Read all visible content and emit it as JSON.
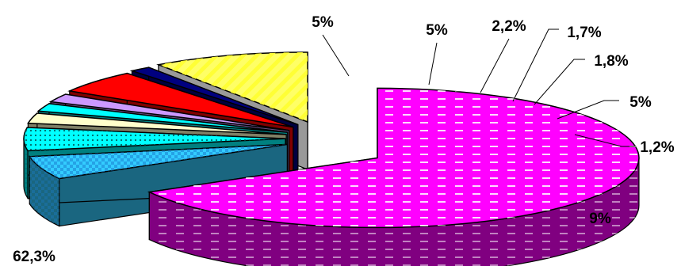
{
  "chart_data": {
    "type": "pie",
    "style": "3d-exploded",
    "slices": [
      {
        "label": "62,3%",
        "value": 62.3,
        "color": "#ff00ff",
        "side_color": "#800080",
        "pattern": "dashes"
      },
      {
        "label": "5%",
        "value": 5,
        "color": "#33ccff",
        "side_color": "#1a6680",
        "pattern": "checker"
      },
      {
        "label": "5%",
        "value": 5,
        "color": "#00ffff",
        "side_color": "#008080",
        "pattern": "dots"
      },
      {
        "label": "2,2%",
        "value": 2.2,
        "color": "#ffffcc",
        "side_color": "#808066",
        "pattern": "none"
      },
      {
        "label": "1,7%",
        "value": 1.7,
        "color": "#00ffff",
        "side_color": "#008080",
        "pattern": "none"
      },
      {
        "label": "1,8%",
        "value": 1.8,
        "color": "#cc99ff",
        "side_color": "#664c80",
        "pattern": "none"
      },
      {
        "label": "5%",
        "value": 5,
        "color": "#ff0000",
        "side_color": "#800000",
        "pattern": "none"
      },
      {
        "label": "1,2%",
        "value": 1.2,
        "color": "#000080",
        "side_color": "#000040",
        "pattern": "none"
      },
      {
        "label": "9%",
        "value": 9,
        "color": "#ffff66",
        "side_color": "#999999",
        "pattern": "diagonal"
      }
    ]
  }
}
